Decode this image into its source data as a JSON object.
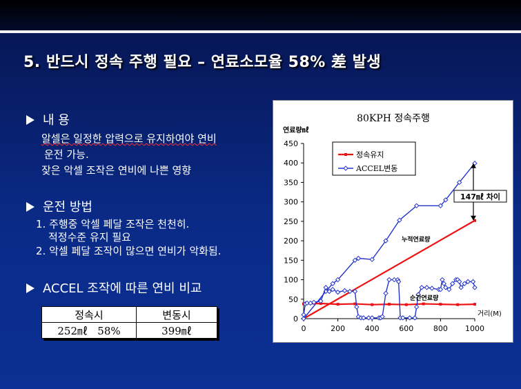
{
  "slide": {
    "title": "5. 반드시 정속 주행 필요 – 연료소모율 58% 差 발생"
  },
  "sections": [
    {
      "heading": "내 용",
      "lines": [
        "알셀은 일정한 압력으로 유지하여야 연비",
        "운전 가능.",
        "잦은 악셀 조작은 연비에 나쁜 영향"
      ]
    },
    {
      "heading": "운전 방법",
      "lines": [
        "1. 주행중 악셀 페달 조작은 천천히.",
        "적정수준 유지 필요",
        "2. 악셀 페달 조작이 많으면 연비가 악화됨."
      ]
    },
    {
      "heading": "ACCEL 조작에 따른 연비 비교",
      "lines": []
    }
  ],
  "comparison_table": {
    "headers": [
      "정속시",
      "변동시"
    ],
    "values": [
      "252㎖   58%",
      "399㎖"
    ]
  },
  "chart_data": {
    "type": "line",
    "title": "80KPH 정속주행",
    "ylabel": "연료량㎖",
    "xlabel": "거리(M)",
    "xlim": [
      0,
      1000
    ],
    "ylim": [
      0,
      450
    ],
    "x_ticks": [
      0,
      200,
      400,
      600,
      800,
      1000
    ],
    "y_ticks": [
      0,
      50,
      100,
      150,
      200,
      250,
      300,
      350,
      400,
      450
    ],
    "grid": false,
    "legend_position": "top-left",
    "colors": {
      "steady": "#ee1111",
      "accel": "#2233cc"
    },
    "series": [
      {
        "name": "정속유지",
        "key": "steady",
        "x": [
          0,
          1000
        ],
        "y": [
          0,
          252
        ],
        "marker": "square"
      },
      {
        "name": "ACCEL변동",
        "key": "accel",
        "x": [
          0,
          130,
          170,
          200,
          300,
          320,
          400,
          480,
          560,
          660,
          800,
          830,
          910,
          1000
        ],
        "y": [
          0,
          70,
          90,
          100,
          150,
          155,
          152,
          200,
          253,
          290,
          290,
          305,
          350,
          399
        ],
        "marker": "diamond"
      },
      {
        "key": "steady",
        "x": [
          0,
          100,
          200,
          300,
          400,
          500,
          600,
          700,
          800,
          900,
          1000
        ],
        "y": [
          38,
          39,
          37,
          38,
          36,
          37,
          36,
          38,
          37,
          36,
          37
        ],
        "marker": "square"
      },
      {
        "key": "accel",
        "x": [
          0,
          10,
          20,
          40,
          60,
          100,
          130,
          150,
          170,
          200,
          240,
          270,
          300,
          310,
          320,
          335,
          350,
          380,
          400,
          440,
          450,
          460,
          480,
          500,
          530,
          550,
          555,
          565,
          580,
          620,
          650,
          660,
          670,
          690,
          720,
          750,
          790,
          800,
          810,
          820,
          830,
          850,
          870,
          890,
          900,
          910,
          920,
          940,
          960,
          990,
          1000
        ],
        "y": [
          10,
          38,
          40,
          40,
          42,
          45,
          80,
          70,
          75,
          68,
          72,
          70,
          70,
          30,
          5,
          2,
          2,
          2,
          2,
          2,
          2,
          5,
          65,
          100,
          100,
          100,
          95,
          2,
          2,
          2,
          2,
          30,
          62,
          80,
          80,
          78,
          75,
          75,
          100,
          90,
          80,
          75,
          90,
          100,
          100,
          95,
          80,
          90,
          95,
          95,
          80
        ],
        "marker": "diamond"
      }
    ],
    "annotations": [
      {
        "text": "147㎖  차이"
      },
      {
        "text": "누적연료량"
      },
      {
        "text": "순간연료량"
      }
    ]
  }
}
